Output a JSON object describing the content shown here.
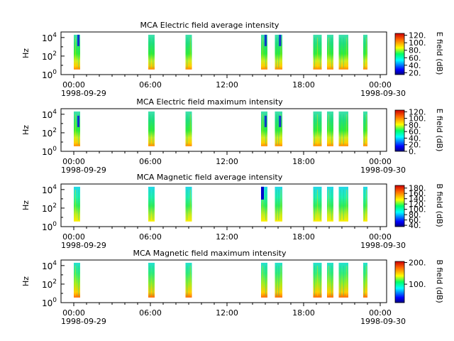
{
  "chart_data": [
    {
      "type": "heatmap",
      "title": "MCA  Electric field average intensity",
      "ylabel": "Hz",
      "yticks": [
        {
          "base": "10",
          "exp": "0"
        },
        {
          "base": "10",
          "exp": "2"
        },
        {
          "base": "10",
          "exp": "4"
        }
      ],
      "xticks": [
        "00:00",
        "06:00",
        "12:00",
        "18:00",
        "00:00"
      ],
      "xdates": [
        "1998-09-29",
        "1998-09-30"
      ],
      "colorbar_label": "E field (dB)",
      "colorbar_ticks": [
        "20.",
        "40.",
        "60.",
        "80.",
        "100.",
        "120."
      ],
      "colorbar_range": [
        15,
        125
      ],
      "segments": [
        {
          "start": "00:00",
          "end": "00:30"
        },
        {
          "start": "05:50",
          "end": "06:20"
        },
        {
          "start": "08:45",
          "end": "09:15"
        },
        {
          "start": "14:40",
          "end": "15:10"
        },
        {
          "start": "15:45",
          "end": "16:20"
        },
        {
          "start": "18:45",
          "end": "19:25"
        },
        {
          "start": "19:50",
          "end": "20:20"
        },
        {
          "start": "20:45",
          "end": "21:30"
        },
        {
          "start": "22:40",
          "end": "23:00"
        }
      ]
    },
    {
      "type": "heatmap",
      "title": "MCA  Electric field maximum intensity",
      "ylabel": "Hz",
      "yticks": [
        {
          "base": "10",
          "exp": "0"
        },
        {
          "base": "10",
          "exp": "2"
        },
        {
          "base": "10",
          "exp": "4"
        }
      ],
      "xticks": [
        "00:00",
        "06:00",
        "12:00",
        "18:00",
        "00:00"
      ],
      "xdates": [
        "1998-09-29",
        "1998-09-30"
      ],
      "colorbar_label": "E field (dB)",
      "colorbar_ticks": [
        "0.",
        "20.",
        "40.",
        "60.",
        "80.",
        "100.",
        "120."
      ],
      "colorbar_range": [
        0,
        125
      ],
      "segments": [
        {
          "start": "00:00",
          "end": "00:30"
        },
        {
          "start": "05:50",
          "end": "06:20"
        },
        {
          "start": "08:45",
          "end": "09:15"
        },
        {
          "start": "14:40",
          "end": "15:10"
        },
        {
          "start": "15:45",
          "end": "16:20"
        },
        {
          "start": "18:45",
          "end": "19:25"
        },
        {
          "start": "19:50",
          "end": "20:20"
        },
        {
          "start": "20:45",
          "end": "21:30"
        },
        {
          "start": "22:40",
          "end": "23:00"
        }
      ]
    },
    {
      "type": "heatmap",
      "title": "MCA  Magnetic field average intensity",
      "ylabel": "Hz",
      "yticks": [
        {
          "base": "10",
          "exp": "0"
        },
        {
          "base": "10",
          "exp": "2"
        },
        {
          "base": "10",
          "exp": "4"
        }
      ],
      "xticks": [
        "00:00",
        "06:00",
        "12:00",
        "18:00",
        "00:00"
      ],
      "xdates": [
        "1998-09-29",
        "1998-09-30"
      ],
      "colorbar_label": "B field (dB)",
      "colorbar_ticks": [
        "40.",
        "60.",
        "80.",
        "100.",
        "120.",
        "140.",
        "160.",
        "180."
      ],
      "colorbar_range": [
        35,
        190
      ],
      "segments": [
        {
          "start": "00:00",
          "end": "00:30"
        },
        {
          "start": "05:50",
          "end": "06:20"
        },
        {
          "start": "08:45",
          "end": "09:15"
        },
        {
          "start": "14:40",
          "end": "15:10"
        },
        {
          "start": "15:45",
          "end": "16:20"
        },
        {
          "start": "18:45",
          "end": "19:25"
        },
        {
          "start": "19:50",
          "end": "20:20"
        },
        {
          "start": "20:45",
          "end": "21:30"
        },
        {
          "start": "22:40",
          "end": "23:00"
        }
      ]
    },
    {
      "type": "heatmap",
      "title": "MCA  Magnetic field maximum intensity",
      "ylabel": "Hz",
      "yticks": [
        {
          "base": "10",
          "exp": "0"
        },
        {
          "base": "10",
          "exp": "2"
        },
        {
          "base": "10",
          "exp": "4"
        }
      ],
      "xticks": [
        "00:00",
        "06:00",
        "12:00",
        "18:00",
        "00:00"
      ],
      "xdates": [
        "1998-09-29",
        "1998-09-30"
      ],
      "colorbar_label": "B field (dB)",
      "colorbar_ticks": [
        "100.",
        "200."
      ],
      "colorbar_range": [
        15,
        205
      ],
      "segments": [
        {
          "start": "00:00",
          "end": "00:30"
        },
        {
          "start": "05:50",
          "end": "06:20"
        },
        {
          "start": "08:45",
          "end": "09:15"
        },
        {
          "start": "14:40",
          "end": "15:10"
        },
        {
          "start": "15:45",
          "end": "16:20"
        },
        {
          "start": "18:45",
          "end": "19:25"
        },
        {
          "start": "19:50",
          "end": "20:20"
        },
        {
          "start": "20:45",
          "end": "21:30"
        },
        {
          "start": "22:40",
          "end": "23:00"
        }
      ]
    }
  ]
}
